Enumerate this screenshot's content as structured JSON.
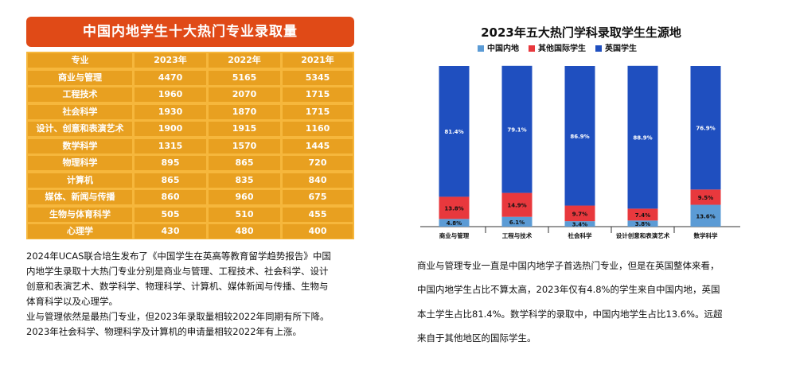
{
  "left": {
    "title": "中国内地学生十大热门专业录取量",
    "table": {
      "headers": [
        "专业",
        "2023年",
        "2022年",
        "2021年"
      ],
      "rows": [
        [
          "商业与管理",
          "4470",
          "5165",
          "5345"
        ],
        [
          "工程技术",
          "1960",
          "2070",
          "1715"
        ],
        [
          "社会科学",
          "1930",
          "1870",
          "1715"
        ],
        [
          "设计、创意和表演艺术",
          "1900",
          "1915",
          "1160"
        ],
        [
          "数学科学",
          "1315",
          "1570",
          "1445"
        ],
        [
          "物理科学",
          "895",
          "865",
          "720"
        ],
        [
          "计算机",
          "865",
          "835",
          "840"
        ],
        [
          "媒体、新闻与传播",
          "860",
          "960",
          "675"
        ],
        [
          "生物与体育科学",
          "505",
          "510",
          "455"
        ],
        [
          "心理学",
          "430",
          "480",
          "400"
        ]
      ]
    },
    "text_lines": [
      "2024年UCAS联合培生发布了《中国学生在英高等教育留学趋势报告》中国",
      "内地学生录取十大热门专业分别是商业与管理、工程技术、社会科学、设计",
      "创意和表演艺术、数学科学、物理科学、计算机、媒体新闻与传播、生物与",
      "体育科学以及心理学。",
      "业与管理依然是最热门专业，但2023年录取量相较2022年同期有所下降。",
      "2023年社会科学、物理科学及计算机的申请量相较2022年有上涨。"
    ]
  },
  "right": {
    "text_lines": [
      "商业与管理专业一直是中国内地学子首选热门专业，但是在英国整体来看，",
      "中国内地学生占比不算太高，2023年仅有4.8%的学生来自中国内地，英国",
      "本土学生占比81.4%。数学科学的录取中，中国内地学生占比13.6%。远超",
      "来自于其他地区的国际学生。"
    ]
  },
  "chart_data": {
    "type": "bar",
    "stacked": true,
    "title": "2023年五大热门学科录取学生生源地",
    "categories": [
      "商业与管理",
      "工程与技术",
      "社会科学",
      "设计创意和表演艺术",
      "数学科学"
    ],
    "series": [
      {
        "name": "中国内地",
        "values": [
          4.8,
          6.1,
          3.4,
          3.8,
          13.6
        ],
        "labels": [
          "4.8%",
          "6.1%",
          "3.4%",
          "3.8%",
          "13.6%"
        ]
      },
      {
        "name": "其他国际学生",
        "values": [
          13.8,
          14.9,
          9.7,
          7.4,
          9.5
        ],
        "labels": [
          "13.8%",
          "14.9%",
          "9.7%",
          "7.4%",
          "9.5%"
        ]
      },
      {
        "name": "英国学生",
        "values": [
          81.4,
          79.1,
          86.9,
          88.9,
          76.9
        ],
        "labels": [
          "81.4%",
          "79.1%",
          "86.9%",
          "88.9%",
          "76.9%"
        ]
      }
    ],
    "colors": [
      "#5b9bd5",
      "#e8383d",
      "#1f4fbf"
    ],
    "ylim": [
      0,
      100
    ],
    "legend_position": "top"
  }
}
